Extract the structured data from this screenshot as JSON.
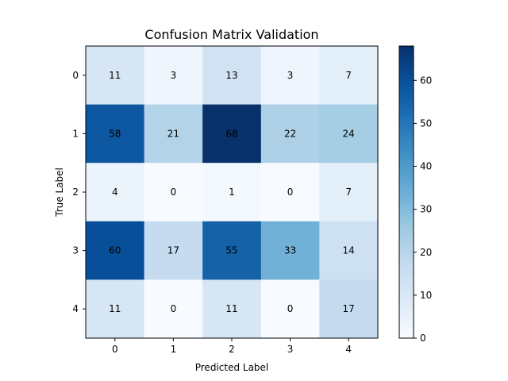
{
  "chart_data": {
    "type": "heatmap",
    "title": "Confusion Matrix Validation",
    "xlabel": "Predicted Label",
    "ylabel": "True Label",
    "x_categories": [
      "0",
      "1",
      "2",
      "3",
      "4"
    ],
    "y_categories": [
      "0",
      "1",
      "2",
      "3",
      "4"
    ],
    "matrix": [
      [
        11,
        3,
        13,
        3,
        7
      ],
      [
        58,
        21,
        68,
        22,
        24
      ],
      [
        4,
        0,
        1,
        0,
        7
      ],
      [
        60,
        17,
        55,
        33,
        14
      ],
      [
        11,
        0,
        11,
        0,
        17
      ]
    ],
    "colormap": "Blues",
    "color_min": 0,
    "color_max": 68,
    "colorbar_ticks": [
      0,
      10,
      20,
      30,
      40,
      50,
      60
    ],
    "colorbar_tick_labels": [
      "0",
      "10",
      "20",
      "30",
      "40",
      "50",
      "60"
    ],
    "text_color_dark": "#000000",
    "grid": false
  }
}
